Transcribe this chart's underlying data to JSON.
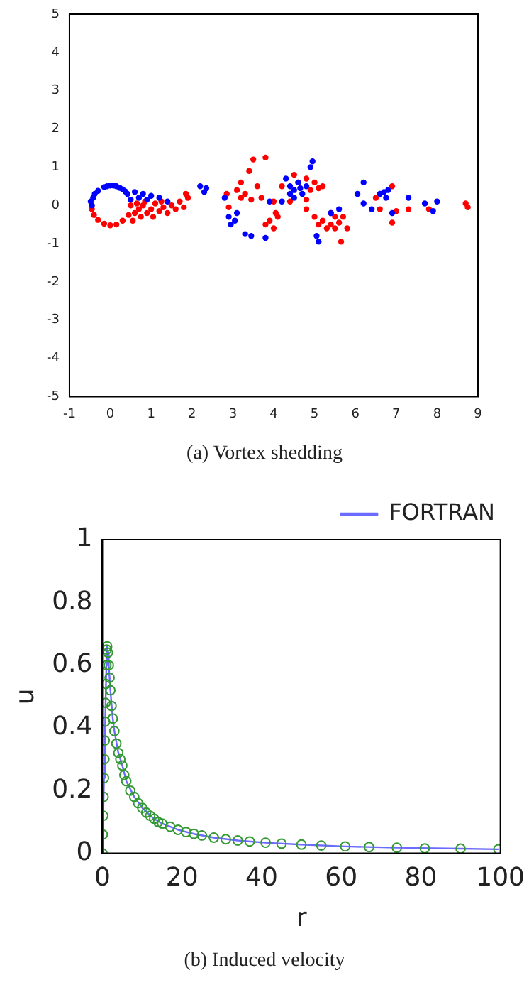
{
  "chart_data": [
    {
      "type": "scatter",
      "annotations": [
        "(a) Vortex shedding"
      ],
      "xlim": [
        -1,
        9
      ],
      "xticks": [
        -1,
        0,
        1,
        2,
        3,
        4,
        5,
        6,
        7,
        8,
        9
      ],
      "ylim": [
        -5,
        5
      ],
      "yticks": [
        -5,
        -4,
        -3,
        -2,
        -1,
        0,
        1,
        2,
        3,
        4,
        5
      ],
      "grid": false,
      "legend": false,
      "marker": "circle",
      "series": [
        {
          "color": "#0000ff",
          "x": [
            -0.45,
            -0.42,
            -0.3,
            -0.15,
            0,
            0.15,
            0.3,
            0.42,
            0.5,
            -0.48,
            -0.38,
            -0.08,
            0.08,
            0.23,
            0.37,
            0.6,
            0.8,
            1.0,
            0.7,
            0.9,
            1.2,
            1.4,
            2.2,
            2.3,
            2.35,
            2.8,
            2.9,
            2.95,
            3.05,
            3.1,
            3.3,
            3.45,
            3.8,
            3.9,
            4.3,
            4.4,
            4.5,
            4.6,
            4.7,
            4.5,
            4.8,
            4.9,
            4.95,
            4.4,
            4.2,
            4.65,
            5.05,
            5.1,
            5.4,
            5.6,
            6.2,
            6.05,
            6.2,
            6.4,
            6.6,
            6.7,
            6.8,
            6.75,
            6.9,
            7.3,
            7.7,
            7.9,
            8.0
          ],
          "values": [
            0,
            0.2,
            0.38,
            0.48,
            0.52,
            0.5,
            0.42,
            0.3,
            0.15,
            0.1,
            0.3,
            0.5,
            0.52,
            0.46,
            0.36,
            0.35,
            0.3,
            0.25,
            0.2,
            0.15,
            0.2,
            0.1,
            0.5,
            0.35,
            0.45,
            0.2,
            -0.3,
            -0.5,
            -0.4,
            -0.2,
            -0.75,
            -0.8,
            -0.85,
            0.1,
            0.7,
            0.5,
            0.4,
            0.6,
            0.3,
            0.2,
            0.5,
            1.0,
            1.15,
            0.3,
            0.1,
            0.45,
            -0.8,
            -0.95,
            -0.2,
            -0.1,
            0.6,
            0.3,
            0.05,
            -0.1,
            0.3,
            0.35,
            0.4,
            0.2,
            -0.2,
            0.2,
            0.05,
            -0.15,
            0.1
          ]
        },
        {
          "color": "#ff0000",
          "x": [
            -0.45,
            -0.4,
            -0.3,
            -0.15,
            0,
            0.15,
            0.3,
            0.45,
            0.5,
            0.6,
            0.7,
            0.8,
            0.9,
            1.0,
            1.1,
            1.2,
            1.3,
            1.4,
            1.5,
            1.6,
            1.7,
            1.8,
            1.9,
            1.85,
            0.65,
            0.75,
            1.05,
            0.55,
            0.85,
            1.25,
            2.9,
            2.85,
            3.8,
            3.9,
            4.0,
            4.05,
            4.0,
            4.1,
            3.1,
            3.2,
            3.4,
            3.5,
            3.3,
            3.6,
            3.7,
            3.45,
            3.2,
            3.8,
            4.2,
            4.5,
            4.6,
            4.8,
            4.8,
            4.9,
            5.0,
            5.1,
            4.4,
            5.2,
            4.8,
            5.0,
            5.1,
            5.2,
            5.3,
            5.4,
            5.5,
            5.6,
            5.7,
            5.65,
            5.8,
            5.4,
            5.5,
            6.5,
            6.9,
            6.6,
            6.9,
            7.0,
            7.3,
            7.8,
            8.7,
            8.75
          ],
          "values": [
            -0.1,
            -0.25,
            -0.38,
            -0.48,
            -0.52,
            -0.5,
            -0.4,
            -0.25,
            0,
            -0.2,
            -0.1,
            0,
            -0.2,
            -0.1,
            0.05,
            -0.15,
            -0.05,
            -0.2,
            0,
            -0.1,
            0.1,
            -0.05,
            0.2,
            0.3,
            0.05,
            -0.3,
            -0.3,
            -0.4,
            0.1,
            0.1,
            -0.05,
            0.3,
            -0.5,
            -0.4,
            -0.6,
            -0.2,
            0.1,
            -0.3,
            0.4,
            0.6,
            0.9,
            1.2,
            0.3,
            0.5,
            0.2,
            0.15,
            0.2,
            1.25,
            0.5,
            0.8,
            0.6,
            0.15,
            0.7,
            0.4,
            0.6,
            0.45,
            0.1,
            0.5,
            -0.1,
            -0.3,
            -0.5,
            -0.4,
            -0.6,
            -0.5,
            -0.3,
            -0.45,
            -0.3,
            -0.95,
            -0.6,
            -0.2,
            -0.6,
            0.2,
            0.5,
            -0.1,
            -0.45,
            -0.15,
            -0.1,
            -0.1,
            0.05,
            -0.05
          ]
        }
      ]
    },
    {
      "type": "line",
      "annotations": [
        "(b) Induced velocity"
      ],
      "xlabel": "r",
      "ylabel": "u",
      "xlim": [
        0,
        100
      ],
      "xticks": [
        0,
        20,
        40,
        60,
        80,
        100
      ],
      "ylim": [
        0,
        1
      ],
      "yticks": [
        0,
        0.2,
        0.4,
        0.6,
        0.8,
        1
      ],
      "grid": false,
      "legend": "top right",
      "series": [
        {
          "name": "FORTRAN",
          "type": "line",
          "marker": "none",
          "color": "#6b6bff",
          "x": [
            0,
            0.2,
            0.4,
            0.6,
            0.8,
            1,
            1.2,
            1.4,
            1.6,
            2,
            2.6,
            3,
            4,
            5,
            6,
            8,
            10,
            13,
            15,
            19,
            23,
            28,
            34,
            41,
            50,
            61,
            74,
            90,
            99.5
          ],
          "values": [
            0,
            0.12,
            0.24,
            0.36,
            0.48,
            0.6,
            0.66,
            0.64,
            0.6,
            0.52,
            0.43,
            0.39,
            0.32,
            0.28,
            0.23,
            0.18,
            0.145,
            0.11,
            0.095,
            0.075,
            0.062,
            0.05,
            0.041,
            0.034,
            0.028,
            0.022,
            0.018,
            0.015,
            0.013
          ]
        },
        {
          "type": "scatter",
          "marker": "circle",
          "color": "#339933",
          "x": [
            0,
            0.1,
            0.2,
            0.3,
            0.4,
            0.5,
            0.6,
            0.7,
            0.8,
            0.9,
            1,
            1.1,
            1.2,
            1.4,
            1.6,
            1.8,
            2,
            2.3,
            2.6,
            3,
            3.5,
            4,
            4.5,
            5,
            5.5,
            6,
            7,
            8,
            9,
            10,
            11,
            12,
            13,
            14,
            15,
            17,
            19,
            21,
            23,
            25,
            28,
            31,
            34,
            37,
            41,
            45,
            50,
            55,
            61,
            67,
            74,
            81,
            90,
            99.5
          ],
          "values": [
            0,
            0.06,
            0.12,
            0.18,
            0.24,
            0.3,
            0.36,
            0.42,
            0.48,
            0.54,
            0.6,
            0.65,
            0.66,
            0.64,
            0.6,
            0.56,
            0.52,
            0.47,
            0.43,
            0.39,
            0.35,
            0.32,
            0.3,
            0.28,
            0.25,
            0.23,
            0.2,
            0.18,
            0.16,
            0.145,
            0.13,
            0.12,
            0.11,
            0.1,
            0.095,
            0.085,
            0.075,
            0.068,
            0.062,
            0.057,
            0.05,
            0.045,
            0.041,
            0.038,
            0.034,
            0.031,
            0.028,
            0.025,
            0.022,
            0.02,
            0.018,
            0.016,
            0.015,
            0.013
          ]
        }
      ]
    }
  ]
}
